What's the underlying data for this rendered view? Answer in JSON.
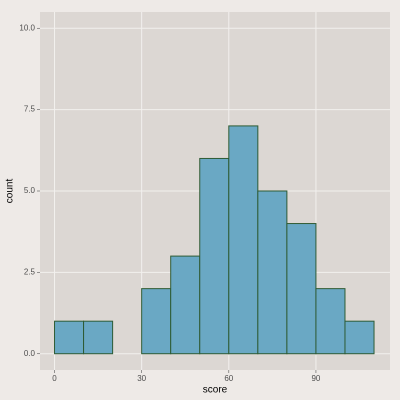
{
  "chart_data": {
    "type": "histogram",
    "x_label": "score",
    "y_label": "count",
    "bins": [
      0,
      10,
      20,
      30,
      40,
      50,
      60,
      70,
      80,
      90,
      100,
      110
    ],
    "values": [
      1,
      1,
      0,
      2,
      3,
      6,
      7,
      5,
      4,
      2,
      1
    ],
    "color": "#6aa8c4",
    "edge_color": "#2e5b34",
    "xlim": [
      -5,
      115.5
    ],
    "xticks": [
      0,
      30,
      60,
      90
    ],
    "ylim": [
      -0.5,
      10.5
    ],
    "yticks": [
      {
        "value": 0,
        "label": "0.0"
      },
      2.5,
      {
        "value": 5,
        "label": "5.0"
      },
      7.5,
      {
        "value": 10,
        "label": "10.0"
      }
    ],
    "grid": true
  }
}
